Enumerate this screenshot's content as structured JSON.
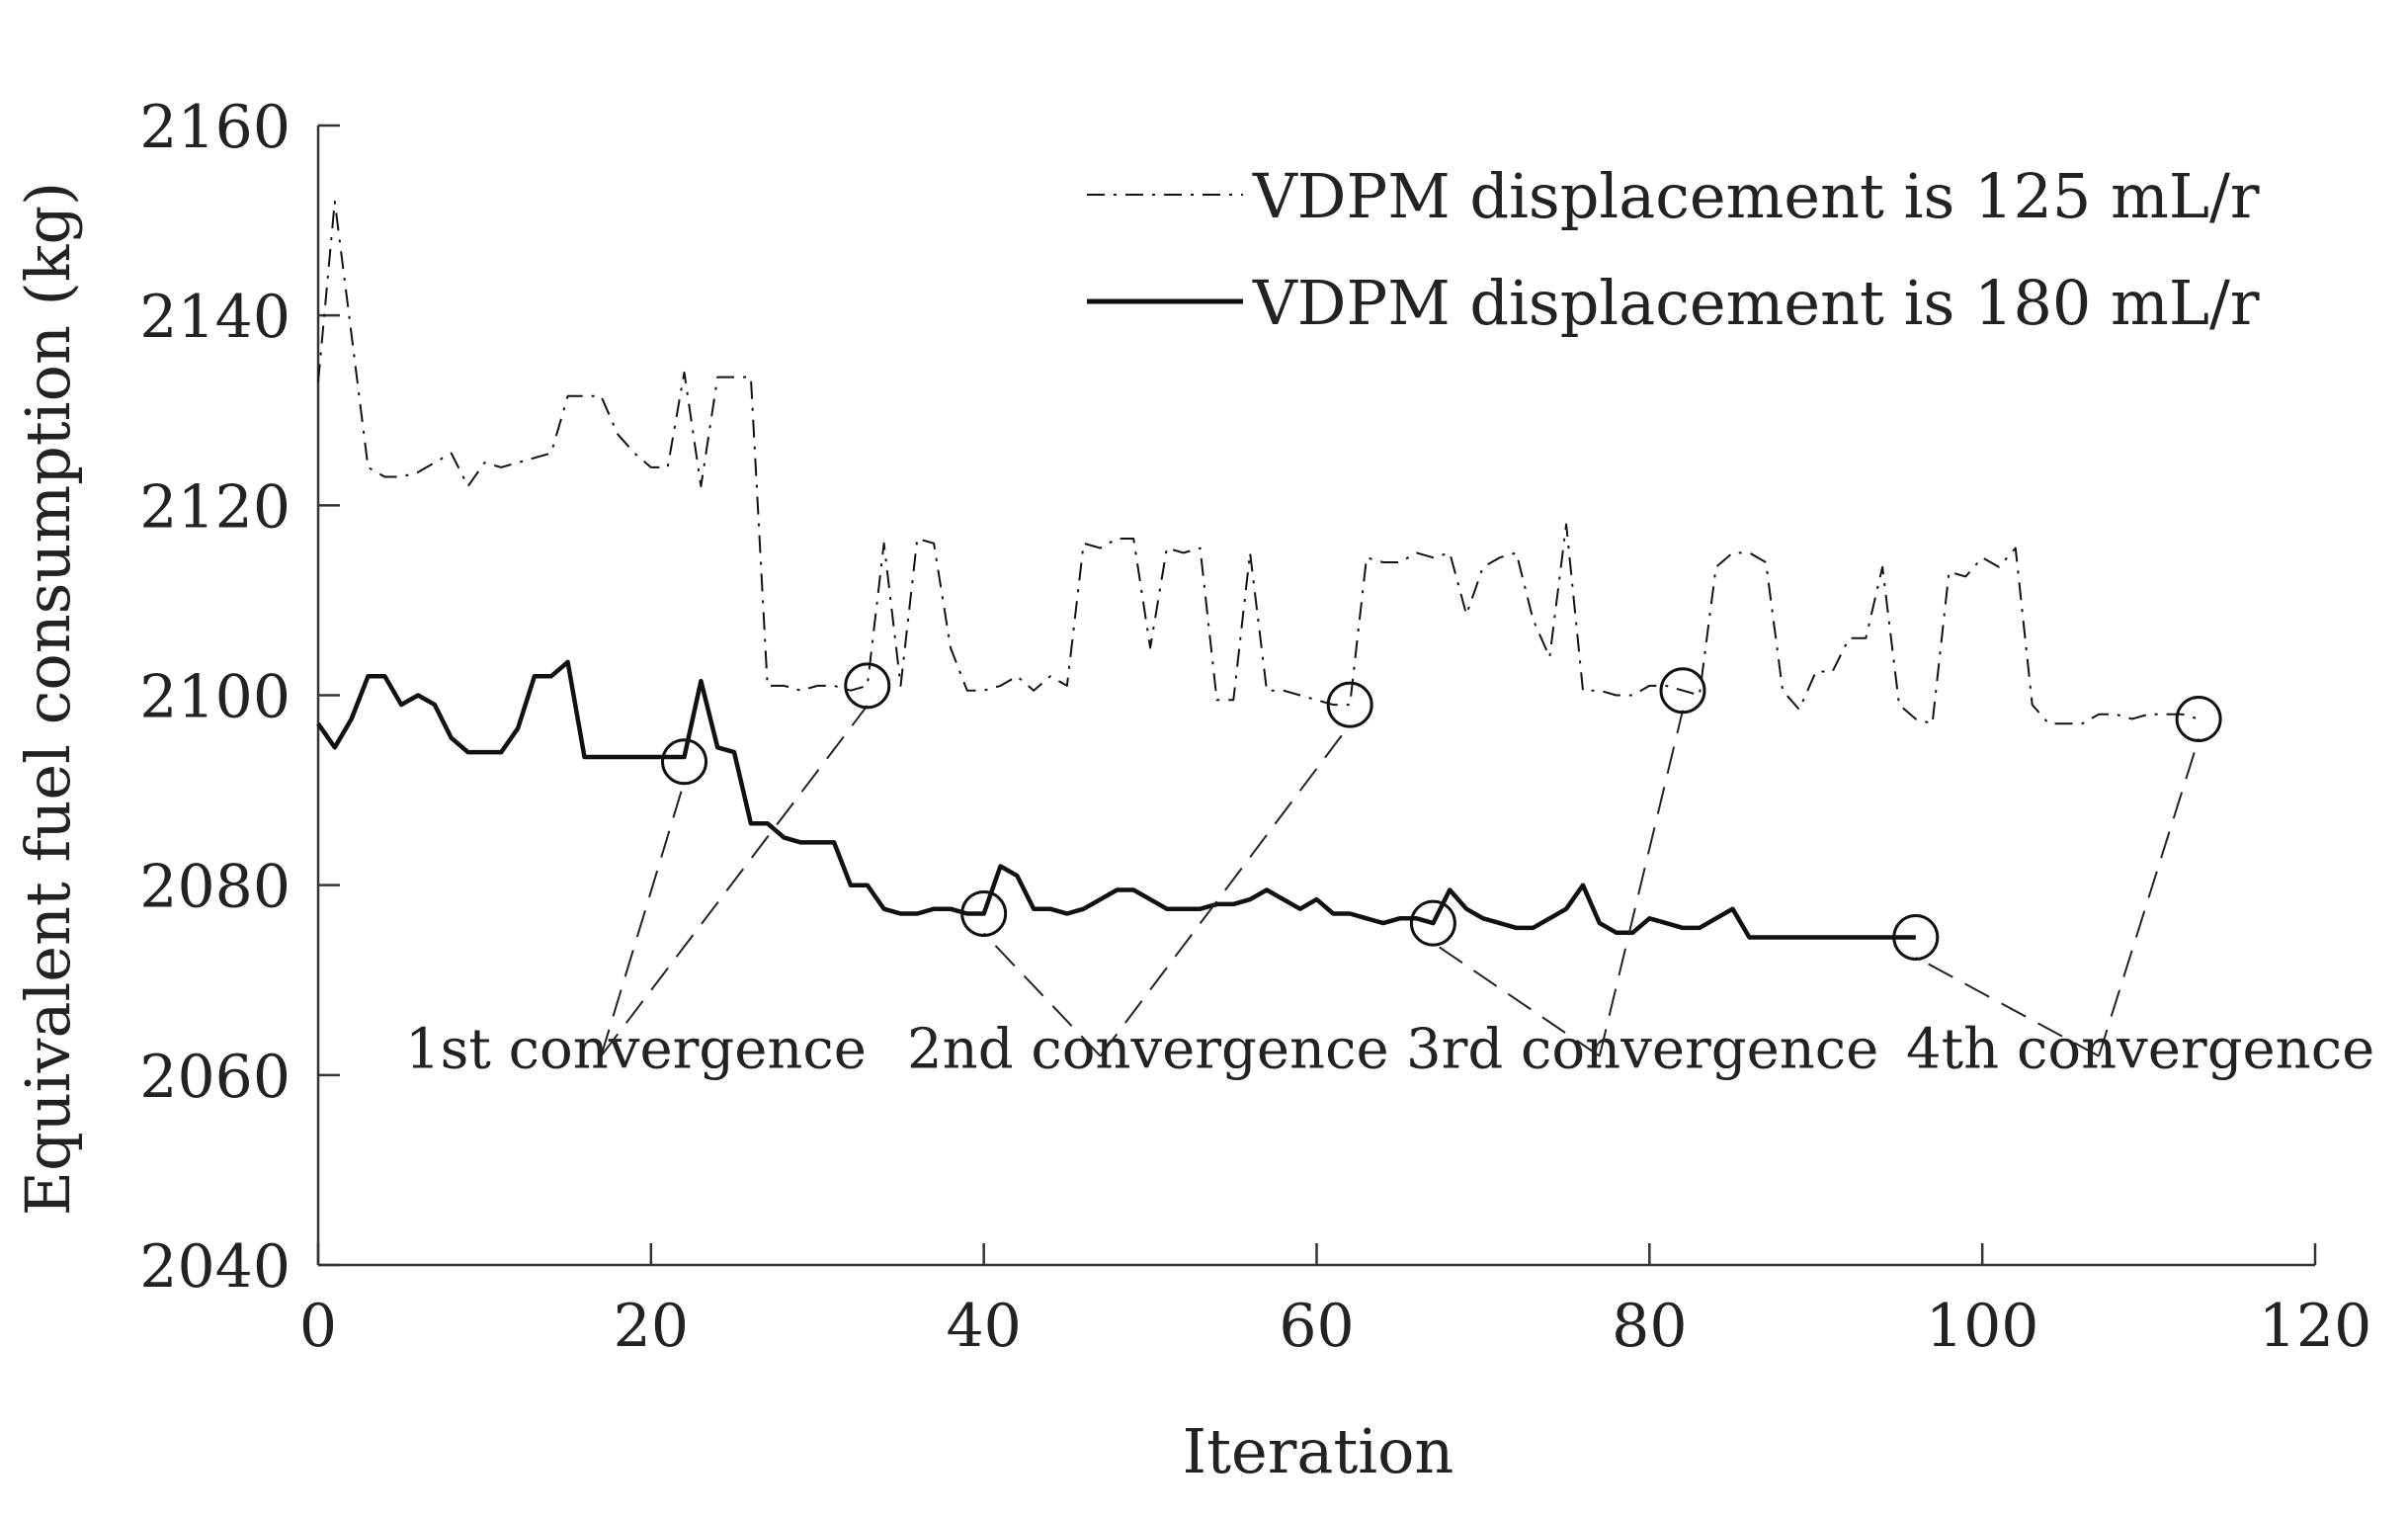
{
  "chart_data": {
    "type": "line",
    "title": "",
    "xlabel": "Iteration",
    "ylabel": "Equivalent fuel consumption (kg)",
    "xlim": [
      0,
      120
    ],
    "ylim": [
      2040,
      2160
    ],
    "xticks": [
      0,
      20,
      40,
      60,
      80,
      100,
      120
    ],
    "yticks": [
      2040,
      2060,
      2080,
      2100,
      2120,
      2140,
      2160
    ],
    "xtick_labels": [
      "0",
      "20",
      "40",
      "60",
      "80",
      "100",
      "120"
    ],
    "ytick_labels": [
      "2040",
      "2060",
      "2080",
      "2100",
      "2120",
      "2140",
      "2160"
    ],
    "grid": false,
    "legend": "top-right",
    "series": [
      {
        "name": "VDPM displacement is 125 mL/r",
        "style": "dash-dot",
        "color": "#111111",
        "x": [
          0,
          1,
          2,
          3,
          4,
          5,
          6,
          7,
          8,
          9,
          10,
          11,
          12,
          13,
          14,
          15,
          16,
          17,
          18,
          19,
          20,
          21,
          22,
          23,
          24,
          25,
          26,
          27,
          28,
          29,
          30,
          31,
          32,
          33,
          34,
          35,
          36,
          37,
          38,
          39,
          40,
          41,
          42,
          43,
          44,
          45,
          46,
          47,
          48,
          49,
          50,
          51,
          52,
          53,
          54,
          55,
          56,
          57,
          58,
          59,
          60,
          61,
          62,
          63,
          64,
          65,
          66,
          67,
          68,
          69,
          70,
          71,
          72,
          73,
          74,
          75,
          76,
          77,
          78,
          79,
          80,
          81,
          82,
          83,
          84,
          85,
          86,
          87,
          88,
          89,
          90,
          91,
          92,
          93,
          94,
          95,
          96,
          97,
          98,
          99,
          100,
          101,
          102,
          103,
          104,
          105,
          106,
          107,
          108,
          109,
          110,
          111,
          112,
          113
        ],
        "values": [
          2133,
          2152,
          2138,
          2124,
          2123,
          2123,
          2123.5,
          2124.5,
          2125.5,
          2122,
          2124.5,
          2124,
          2124.5,
          2125,
          2125.5,
          2131.5,
          2131.5,
          2131.5,
          2127.5,
          2125.5,
          2124,
          2124,
          2134,
          2122,
          2133.5,
          2133.5,
          2133.5,
          2101,
          2101,
          2100.5,
          2101,
          2101,
          2100.5,
          2101,
          2116,
          2101,
          2116.5,
          2116,
          2105,
          2100.5,
          2100.5,
          2101,
          2102,
          2100.5,
          2102,
          2101,
          2116,
          2115.5,
          2116.5,
          2116.5,
          2105,
          2115.5,
          2115,
          2115.5,
          2099.5,
          2099.5,
          2115,
          2100.5,
          2100.5,
          2100,
          2099.5,
          2099,
          2099,
          2114.5,
          2114,
          2114,
          2115,
          2114.5,
          2115,
          2108.5,
          2113.5,
          2114.5,
          2115,
          2108,
          2104,
          2118,
          2100.5,
          2100.5,
          2100,
          2100,
          2101,
          2101,
          2100.5,
          2100,
          2113.5,
          2115,
          2115,
          2114,
          2100.5,
          2098.5,
          2102.5,
          2102.5,
          2106,
          2106,
          2113.5,
          2099,
          2097.5,
          2097,
          2113,
          2112.5,
          2114.5,
          2113.5,
          2115.5,
          2099,
          2097,
          2097,
          2097,
          2098,
          2098,
          2097.5,
          2098,
          2098,
          2098,
          2097.5
        ]
      },
      {
        "name": "VDPM displacement is 180 mL/r",
        "style": "solid",
        "color": "#111111",
        "x": [
          0,
          1,
          2,
          3,
          4,
          5,
          6,
          7,
          8,
          9,
          10,
          11,
          12,
          13,
          14,
          15,
          16,
          17,
          18,
          19,
          20,
          21,
          22,
          23,
          24,
          25,
          26,
          27,
          28,
          29,
          30,
          31,
          32,
          33,
          34,
          35,
          36,
          37,
          38,
          39,
          40,
          41,
          42,
          43,
          44,
          45,
          46,
          47,
          48,
          49,
          50,
          51,
          52,
          53,
          54,
          55,
          56,
          57,
          58,
          59,
          60,
          61,
          62,
          63,
          64,
          65,
          66,
          67,
          68,
          69,
          70,
          71,
          72,
          73,
          74,
          75,
          76,
          77,
          78,
          79,
          80,
          81,
          82,
          83,
          84,
          85,
          86,
          87,
          88,
          89,
          90,
          91,
          92,
          93,
          94,
          95,
          96
        ],
        "values": [
          2097,
          2094.5,
          2097.5,
          2102,
          2102,
          2099,
          2100,
          2099,
          2095.5,
          2094,
          2094,
          2094,
          2096.5,
          2102,
          2102,
          2103.5,
          2093.5,
          2093.5,
          2093.5,
          2093.5,
          2093.5,
          2093.5,
          2093.5,
          2101.5,
          2094.5,
          2094,
          2086.5,
          2086.5,
          2085,
          2084.5,
          2084.5,
          2084.5,
          2080,
          2080,
          2077.5,
          2077,
          2077,
          2077.5,
          2077.5,
          2077,
          2077,
          2082,
          2081,
          2077.5,
          2077.5,
          2077,
          2077.5,
          2078.5,
          2079.5,
          2079.5,
          2078.5,
          2077.5,
          2077.5,
          2077.5,
          2078,
          2078,
          2078.5,
          2079.5,
          2078.5,
          2077.5,
          2078.5,
          2077,
          2077,
          2076.5,
          2076,
          2076.5,
          2076.5,
          2076,
          2079.5,
          2077.5,
          2076.5,
          2076,
          2075.5,
          2075.5,
          2076.5,
          2077.5,
          2080,
          2076,
          2075,
          2075,
          2076.5,
          2076,
          2075.5,
          2075.5,
          2076.5,
          2077.5,
          2074.5,
          2074.5,
          2074.5,
          2074.5,
          2074.5,
          2074.5,
          2074.5,
          2074.5,
          2074.5,
          2074.5,
          2074.5
        ]
      }
    ],
    "convergence_points": {
      "series_125": [
        [
          33,
          2101
        ],
        [
          62,
          2099
        ],
        [
          82,
          2100.5
        ],
        [
          113,
          2097.5
        ]
      ],
      "series_180": [
        [
          22,
          2093
        ],
        [
          40,
          2077
        ],
        [
          67,
          2076
        ],
        [
          96,
          2074.5
        ]
      ]
    },
    "annotations": [
      {
        "label": "1st convergence",
        "anchor": [
          17,
          2062
        ]
      },
      {
        "label": "2nd convergence",
        "anchor": [
          47,
          2062
        ]
      },
      {
        "label": "3rd convergence",
        "anchor": [
          77,
          2062
        ]
      },
      {
        "label": "4th convergence",
        "anchor": [
          107,
          2062
        ]
      }
    ]
  }
}
